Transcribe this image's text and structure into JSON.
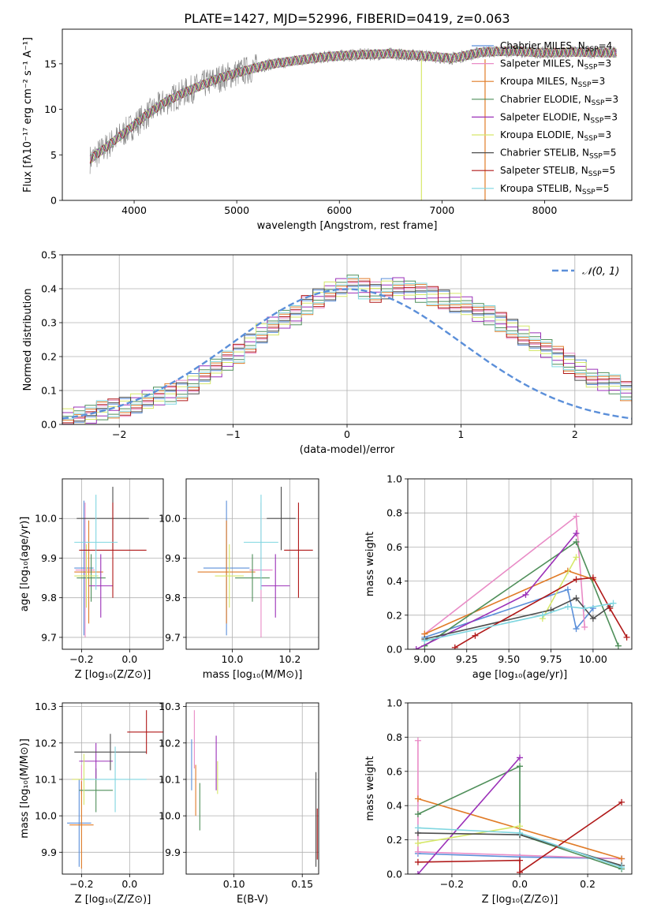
{
  "page_title": "PLATE=1427, MJD=52996, FIBERID=0419, z=0.063",
  "chart_data": [
    {
      "id": "spectrum",
      "type": "line",
      "xlabel": "wavelength [Angstrom, rest frame]",
      "ylabel": "Flux [fλ10⁻¹⁷ erg cm⁻² s⁻¹ A⁻¹]",
      "xlim": [
        3300,
        8850
      ],
      "ylim": [
        0,
        18.8
      ],
      "xticks": [
        4000,
        5000,
        6000,
        7000,
        8000
      ],
      "yticks": [
        0,
        5,
        10,
        15
      ],
      "legend": "right",
      "continuum_x": [
        3570,
        3700,
        3900,
        4100,
        4300,
        4500,
        4800,
        5000,
        5300,
        5600,
        5900,
        6200,
        6500,
        6800,
        7100,
        7400,
        7700,
        8000,
        8300,
        8700
      ],
      "continuum_y": [
        4.5,
        5.6,
        7.4,
        9.2,
        10.8,
        11.9,
        13.3,
        14.0,
        14.9,
        15.4,
        15.8,
        16.0,
        16.1,
        15.9,
        15.6,
        16.3,
        16.4,
        16.2,
        16.3,
        16.2
      ],
      "features": [
        {
          "name": "bottom-spike-1",
          "x": 6800
        },
        {
          "name": "bottom-spike-2",
          "x": 7420
        }
      ],
      "series": [
        {
          "name": "Chabrier MILES, N$_{SSP}$=4",
          "label_main": "Chabrier MILES, N",
          "label_sub": "SSP",
          "label_end": "=4",
          "color": "#5b8fd9"
        },
        {
          "name": "Salpeter MILES, N$_{SSP}$=3",
          "label_main": "Salpeter MILES, N",
          "label_sub": "SSP",
          "label_end": "=3",
          "color": "#e98bc6"
        },
        {
          "name": "Kroupa MILES, N$_{SSP}$=3",
          "label_main": "Kroupa MILES, N",
          "label_sub": "SSP",
          "label_end": "=3",
          "color": "#e07b27"
        },
        {
          "name": "Chabrier ELODIE, N$_{SSP}$=3",
          "label_main": "Chabrier ELODIE, N",
          "label_sub": "SSP",
          "label_end": "=3",
          "color": "#4f8f5a"
        },
        {
          "name": "Salpeter ELODIE, N$_{SSP}$=3",
          "label_main": "Salpeter ELODIE, N",
          "label_sub": "SSP",
          "label_end": "=3",
          "color": "#9b30b8"
        },
        {
          "name": "Kroupa ELODIE, N$_{SSP}$=3",
          "label_main": "Kroupa ELODIE, N",
          "label_sub": "SSP",
          "label_end": "=3",
          "color": "#d6e86a"
        },
        {
          "name": "Chabrier STELIB, N$_{SSP}$=5",
          "label_main": "Chabrier STELIB, N",
          "label_sub": "SSP",
          "label_end": "=5",
          "color": "#4d4d4d"
        },
        {
          "name": "Salpeter STELIB, N$_{SSP}$=5",
          "label_main": "Salpeter STELIB, N",
          "label_sub": "SSP",
          "label_end": "=5",
          "color": "#b01818"
        },
        {
          "name": "Kroupa STELIB, N$_{SSP}$=5",
          "label_main": "Kroupa STELIB, N",
          "label_sub": "SSP",
          "label_end": "=5",
          "color": "#7fd6e0"
        }
      ],
      "data_color": "#808080"
    },
    {
      "id": "residuals",
      "type": "histogram",
      "xlabel": "(data-model)/error",
      "ylabel": "Normed distribution",
      "xlim": [
        -2.5,
        2.5
      ],
      "ylim": [
        0,
        0.5
      ],
      "xticks": [
        -2,
        -1,
        0,
        1,
        2
      ],
      "xtick_labels": [
        "−2",
        "−1",
        "0",
        "1",
        "2"
      ],
      "yticks": [
        0.0,
        0.1,
        0.2,
        0.3,
        0.4,
        0.5
      ],
      "ytick_labels": [
        "0.0",
        "0.1",
        "0.2",
        "0.3",
        "0.4",
        "0.5"
      ],
      "grid": true,
      "legend": "top-right",
      "gaussian_label": "𝒩(0, 1)",
      "gaussian_color": "#5b8fd9",
      "bin_width": 0.1,
      "bin_start": -2.5,
      "counts_base": [
        0.02,
        0.025,
        0.03,
        0.04,
        0.045,
        0.05,
        0.06,
        0.07,
        0.08,
        0.09,
        0.1,
        0.12,
        0.15,
        0.17,
        0.19,
        0.21,
        0.24,
        0.27,
        0.29,
        0.31,
        0.32,
        0.35,
        0.37,
        0.39,
        0.4,
        0.41,
        0.4,
        0.39,
        0.4,
        0.41,
        0.4,
        0.39,
        0.38,
        0.37,
        0.36,
        0.35,
        0.33,
        0.32,
        0.3,
        0.28,
        0.26,
        0.24,
        0.22,
        0.2,
        0.18,
        0.16,
        0.14,
        0.13,
        0.12,
        0.1,
        0.09,
        0.08,
        0.07,
        0.06,
        0.055,
        0.05,
        0.045,
        0.04,
        0.035,
        0.03
      ]
    },
    {
      "id": "age-vs-Z",
      "type": "errorbar",
      "xlabel": "Z [log₁₀(Z/Z⊙)]",
      "ylabel": "age  [log₁₀(age/yr)]",
      "xlim": [
        -0.28,
        0.14
      ],
      "ylim": [
        9.67,
        10.1
      ],
      "xticks": [
        -0.2,
        0.0
      ],
      "xtick_labels": [
        "−0.2",
        "0.0"
      ],
      "yticks": [
        9.7,
        9.8,
        9.9,
        10.0
      ],
      "ytick_labels": [
        "9.7",
        "9.8",
        "9.9",
        "10.0"
      ],
      "points": [
        {
          "x": -0.19,
          "xerr": 0.04,
          "y": 9.875,
          "yerr": 0.17
        },
        {
          "x": -0.185,
          "xerr": 0.04,
          "y": 9.87,
          "yerr": 0.17
        },
        {
          "x": -0.17,
          "xerr": 0.06,
          "y": 9.865,
          "yerr": 0.13
        },
        {
          "x": -0.16,
          "xerr": 0.06,
          "y": 9.85,
          "yerr": 0.06
        },
        {
          "x": -0.12,
          "xerr": 0.05,
          "y": 9.83,
          "yerr": 0.08
        },
        {
          "x": -0.18,
          "xerr": 0.05,
          "y": 9.855,
          "yerr": 0.08
        },
        {
          "x": -0.07,
          "xerr": 0.15,
          "y": 10.0,
          "yerr": 0.08
        },
        {
          "x": -0.07,
          "xerr": 0.14,
          "y": 9.92,
          "yerr": 0.12
        },
        {
          "x": -0.14,
          "xerr": 0.09,
          "y": 9.94,
          "yerr": 0.12
        }
      ]
    },
    {
      "id": "age-vs-mass",
      "type": "errorbar",
      "xlabel": "mass [log₁₀(M/M⊙)]",
      "ylabel": "",
      "xlim": [
        9.84,
        10.3
      ],
      "ylim": [
        9.67,
        10.1
      ],
      "xticks": [
        10.0,
        10.2
      ],
      "xtick_labels": [
        "10.0",
        "10.2"
      ],
      "yticks": [
        9.7,
        9.8,
        9.9,
        10.0
      ],
      "ytick_labels": [
        "9.7",
        "9.8",
        "9.9",
        "10.0"
      ],
      "points": [
        {
          "x": 9.98,
          "xerr": 0.08,
          "y": 9.875,
          "yerr": 0.17
        },
        {
          "x": 10.1,
          "xerr": 0.04,
          "y": 9.87,
          "yerr": 0.17
        },
        {
          "x": 9.98,
          "xerr": 0.1,
          "y": 9.865,
          "yerr": 0.13
        },
        {
          "x": 10.07,
          "xerr": 0.06,
          "y": 9.85,
          "yerr": 0.06
        },
        {
          "x": 10.15,
          "xerr": 0.05,
          "y": 9.83,
          "yerr": 0.08
        },
        {
          "x": 9.99,
          "xerr": 0.05,
          "y": 9.855,
          "yerr": 0.08
        },
        {
          "x": 10.17,
          "xerr": 0.05,
          "y": 10.0,
          "yerr": 0.08
        },
        {
          "x": 10.23,
          "xerr": 0.05,
          "y": 9.92,
          "yerr": 0.12
        },
        {
          "x": 10.1,
          "xerr": 0.06,
          "y": 9.94,
          "yerr": 0.12
        }
      ]
    },
    {
      "id": "weight-vs-age",
      "type": "line",
      "xlabel": "age  [log₁₀(age/yr)]",
      "ylabel": "mass weight",
      "xlim": [
        8.9,
        10.23
      ],
      "ylim": [
        0,
        1.0
      ],
      "xticks": [
        9.0,
        9.25,
        9.5,
        9.75,
        10.0
      ],
      "xtick_labels": [
        "9.00",
        "9.25",
        "9.50",
        "9.75",
        "10.00"
      ],
      "yticks": [
        0.0,
        0.2,
        0.4,
        0.6,
        0.8,
        1.0
      ],
      "ytick_labels": [
        "0.0",
        "0.2",
        "0.4",
        "0.6",
        "0.8",
        "1.0"
      ],
      "series": [
        {
          "x": [
            9.0,
            9.85,
            9.9,
            10.0
          ],
          "y": [
            0.07,
            0.35,
            0.12,
            0.24
          ]
        },
        {
          "x": [
            9.0,
            9.9,
            9.95
          ],
          "y": [
            0.09,
            0.78,
            0.13
          ]
        },
        {
          "x": [
            9.0,
            9.85,
            10.0
          ],
          "y": [
            0.09,
            0.46,
            0.41
          ]
        },
        {
          "x": [
            9.0,
            9.9,
            10.15
          ],
          "y": [
            0.02,
            0.63,
            0.02
          ]
        },
        {
          "x": [
            8.95,
            9.6,
            9.9
          ],
          "y": [
            0.0,
            0.32,
            0.68
          ]
        },
        {
          "x": [
            9.7,
            9.9
          ],
          "y": [
            0.18,
            0.54
          ]
        },
        {
          "x": [
            9.0,
            9.75,
            9.9,
            10.0,
            10.1
          ],
          "y": [
            0.06,
            0.23,
            0.3,
            0.18,
            0.25
          ]
        },
        {
          "x": [
            9.18,
            9.3,
            9.9,
            10.0,
            10.1,
            10.2
          ],
          "y": [
            0.01,
            0.08,
            0.41,
            0.42,
            0.24,
            0.07
          ]
        },
        {
          "x": [
            9.0,
            9.7,
            9.85,
            9.95,
            10.12
          ],
          "y": [
            0.05,
            0.2,
            0.25,
            0.24,
            0.27
          ]
        }
      ]
    },
    {
      "id": "mass-vs-Z",
      "type": "errorbar",
      "xlabel": "Z [log₁₀(Z/Z⊙)]",
      "ylabel": "mass [log₁₀(M/M⊙)]",
      "xlim": [
        -0.28,
        0.14
      ],
      "ylim": [
        9.84,
        10.31
      ],
      "xticks": [
        -0.2,
        0.0
      ],
      "xtick_labels": [
        "−0.2",
        "0.0"
      ],
      "yticks": [
        9.9,
        10.0,
        10.1,
        10.2,
        10.3
      ],
      "ytick_labels": [
        "9.9",
        "10.0",
        "10.1",
        "10.2",
        "10.3"
      ],
      "points": [
        {
          "x": -0.21,
          "xerr": 0.05,
          "y": 9.98,
          "yerr": 0.12
        },
        {
          "x": -0.2,
          "xerr": 0.04,
          "y": 10.1,
          "yerr": 0.04
        },
        {
          "x": -0.2,
          "xerr": 0.05,
          "y": 9.975,
          "yerr": 0.12
        },
        {
          "x": -0.14,
          "xerr": 0.07,
          "y": 10.07,
          "yerr": 0.06
        },
        {
          "x": -0.14,
          "xerr": 0.07,
          "y": 10.15,
          "yerr": 0.05
        },
        {
          "x": -0.19,
          "xerr": 0.05,
          "y": 10.1,
          "yerr": 0.07
        },
        {
          "x": -0.08,
          "xerr": 0.15,
          "y": 10.175,
          "yerr": 0.05
        },
        {
          "x": 0.07,
          "xerr": 0.08,
          "y": 10.23,
          "yerr": 0.06
        },
        {
          "x": -0.06,
          "xerr": 0.13,
          "y": 10.1,
          "yerr": 0.09
        }
      ]
    },
    {
      "id": "mass-vs-EBV",
      "type": "errorbar",
      "xlabel": "E(B-V)",
      "ylabel": "",
      "xlim": [
        0.065,
        0.162
      ],
      "ylim": [
        9.84,
        10.31
      ],
      "xticks": [
        0.1,
        0.15
      ],
      "xtick_labels": [
        "0.10",
        "0.15"
      ],
      "yticks": [
        9.9,
        10.0,
        10.1,
        10.2,
        10.3
      ],
      "ytick_labels": [
        "9.9",
        "10.0",
        "10.1",
        "10.2",
        "10.3"
      ],
      "vbars": [
        {
          "x": 0.069,
          "y0": 10.07,
          "y1": 10.21
        },
        {
          "x": 0.071,
          "y0": 10.13,
          "y1": 10.29
        },
        {
          "x": 0.072,
          "y0": 10.0,
          "y1": 10.14
        },
        {
          "x": 0.075,
          "y0": 9.96,
          "y1": 10.09
        },
        {
          "x": 0.087,
          "y0": 10.07,
          "y1": 10.22
        },
        {
          "x": 0.088,
          "y0": 10.06,
          "y1": 10.15
        },
        {
          "x": 0.16,
          "y0": 9.86,
          "y1": 10.12
        },
        {
          "x": 0.161,
          "y0": 9.88,
          "y1": 10.02
        }
      ]
    },
    {
      "id": "weight-vs-Z",
      "type": "line",
      "xlabel": "Z [log₁₀(Z/Z⊙)]",
      "ylabel": "mass weight",
      "xlim": [
        -0.33,
        0.33
      ],
      "ylim": [
        0,
        1.0
      ],
      "xticks": [
        -0.2,
        0.0,
        0.2
      ],
      "xtick_labels": [
        "−0.2",
        "0.0",
        "0.2"
      ],
      "yticks": [
        0.0,
        0.2,
        0.4,
        0.6,
        0.8,
        1.0
      ],
      "ytick_labels": [
        "0.0",
        "0.2",
        "0.4",
        "0.6",
        "0.8",
        "1.0"
      ],
      "series": [
        {
          "x": [
            -0.3,
            0.0,
            0.3
          ],
          "y": [
            0.12,
            0.1,
            0.09
          ]
        },
        {
          "x": [
            -0.3,
            -0.3,
            0.3
          ],
          "y": [
            0.78,
            0.13,
            0.09
          ]
        },
        {
          "x": [
            -0.3,
            0.3
          ],
          "y": [
            0.44,
            0.09
          ]
        },
        {
          "x": [
            -0.3,
            0.0,
            0.0,
            0.3
          ],
          "y": [
            0.35,
            0.63,
            0.23,
            0.03
          ]
        },
        {
          "x": [
            -0.3,
            0.0
          ],
          "y": [
            0.0,
            0.68
          ]
        },
        {
          "x": [
            -0.3,
            0.0
          ],
          "y": [
            0.18,
            0.28
          ]
        },
        {
          "x": [
            -0.3,
            0.0,
            0.3
          ],
          "y": [
            0.24,
            0.23,
            0.05
          ]
        },
        {
          "x": [
            -0.3,
            0.0,
            0.0,
            0.3
          ],
          "y": [
            0.07,
            0.08,
            0.01,
            0.42
          ]
        },
        {
          "x": [
            -0.3,
            0.0,
            0.3
          ],
          "y": [
            0.27,
            0.24,
            0.04
          ]
        }
      ]
    }
  ]
}
